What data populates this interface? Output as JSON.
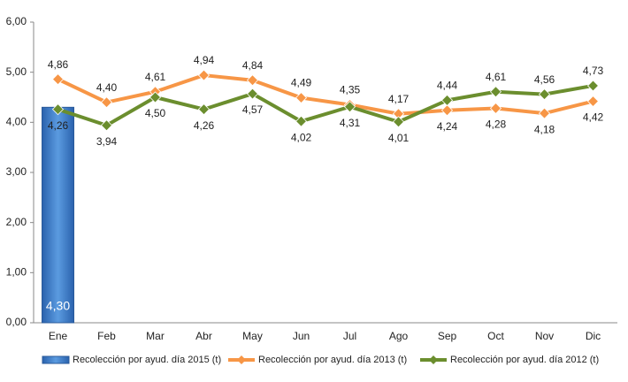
{
  "chart_data": {
    "type": "line",
    "categories": [
      "Ene",
      "Feb",
      "Mar",
      "Abr",
      "May",
      "Jun",
      "Jul",
      "Ago",
      "Sep",
      "Oct",
      "Nov",
      "Dic"
    ],
    "series": [
      {
        "name": "Recolección por ayud. día 2015 (t)",
        "type": "bar",
        "color": "#3b78c4",
        "values": [
          4.3,
          null,
          null,
          null,
          null,
          null,
          null,
          null,
          null,
          null,
          null,
          null
        ],
        "value_labels": [
          "4,30",
          null,
          null,
          null,
          null,
          null,
          null,
          null,
          null,
          null,
          null,
          null
        ]
      },
      {
        "name": "Recolección por ayud. día 2013 (t)",
        "type": "line",
        "color": "#f79646",
        "values": [
          4.86,
          4.4,
          4.61,
          4.94,
          4.84,
          4.49,
          4.35,
          4.17,
          4.24,
          4.28,
          4.18,
          4.42
        ],
        "value_labels": [
          "4,86",
          "4,40",
          "4,61",
          "4,94",
          "4,84",
          "4,49",
          "4,35",
          "4,17",
          "4,24",
          "4,28",
          "4,18",
          "4,42"
        ]
      },
      {
        "name": "Recolección por ayud. día 2012 (t)",
        "type": "line",
        "color": "#6b8e2e",
        "values": [
          4.26,
          3.94,
          4.5,
          4.26,
          4.57,
          4.02,
          4.31,
          4.01,
          4.44,
          4.61,
          4.56,
          4.73
        ],
        "value_labels": [
          "4,26",
          "3,94",
          "4,50",
          "4,26",
          "4,57",
          "4,02",
          "4,31",
          "4,01",
          "4,44",
          "4,61",
          "4,56",
          "4,73"
        ]
      }
    ],
    "ylim": [
      0,
      6
    ],
    "yticks": [
      {
        "value": 0,
        "label": "0,00"
      },
      {
        "value": 1,
        "label": "1,00"
      },
      {
        "value": 2,
        "label": "2,00"
      },
      {
        "value": 3,
        "label": "3,00"
      },
      {
        "value": 4,
        "label": "4,00"
      },
      {
        "value": 5,
        "label": "5,00"
      },
      {
        "value": 6,
        "label": "6,00"
      }
    ],
    "grid": false
  }
}
